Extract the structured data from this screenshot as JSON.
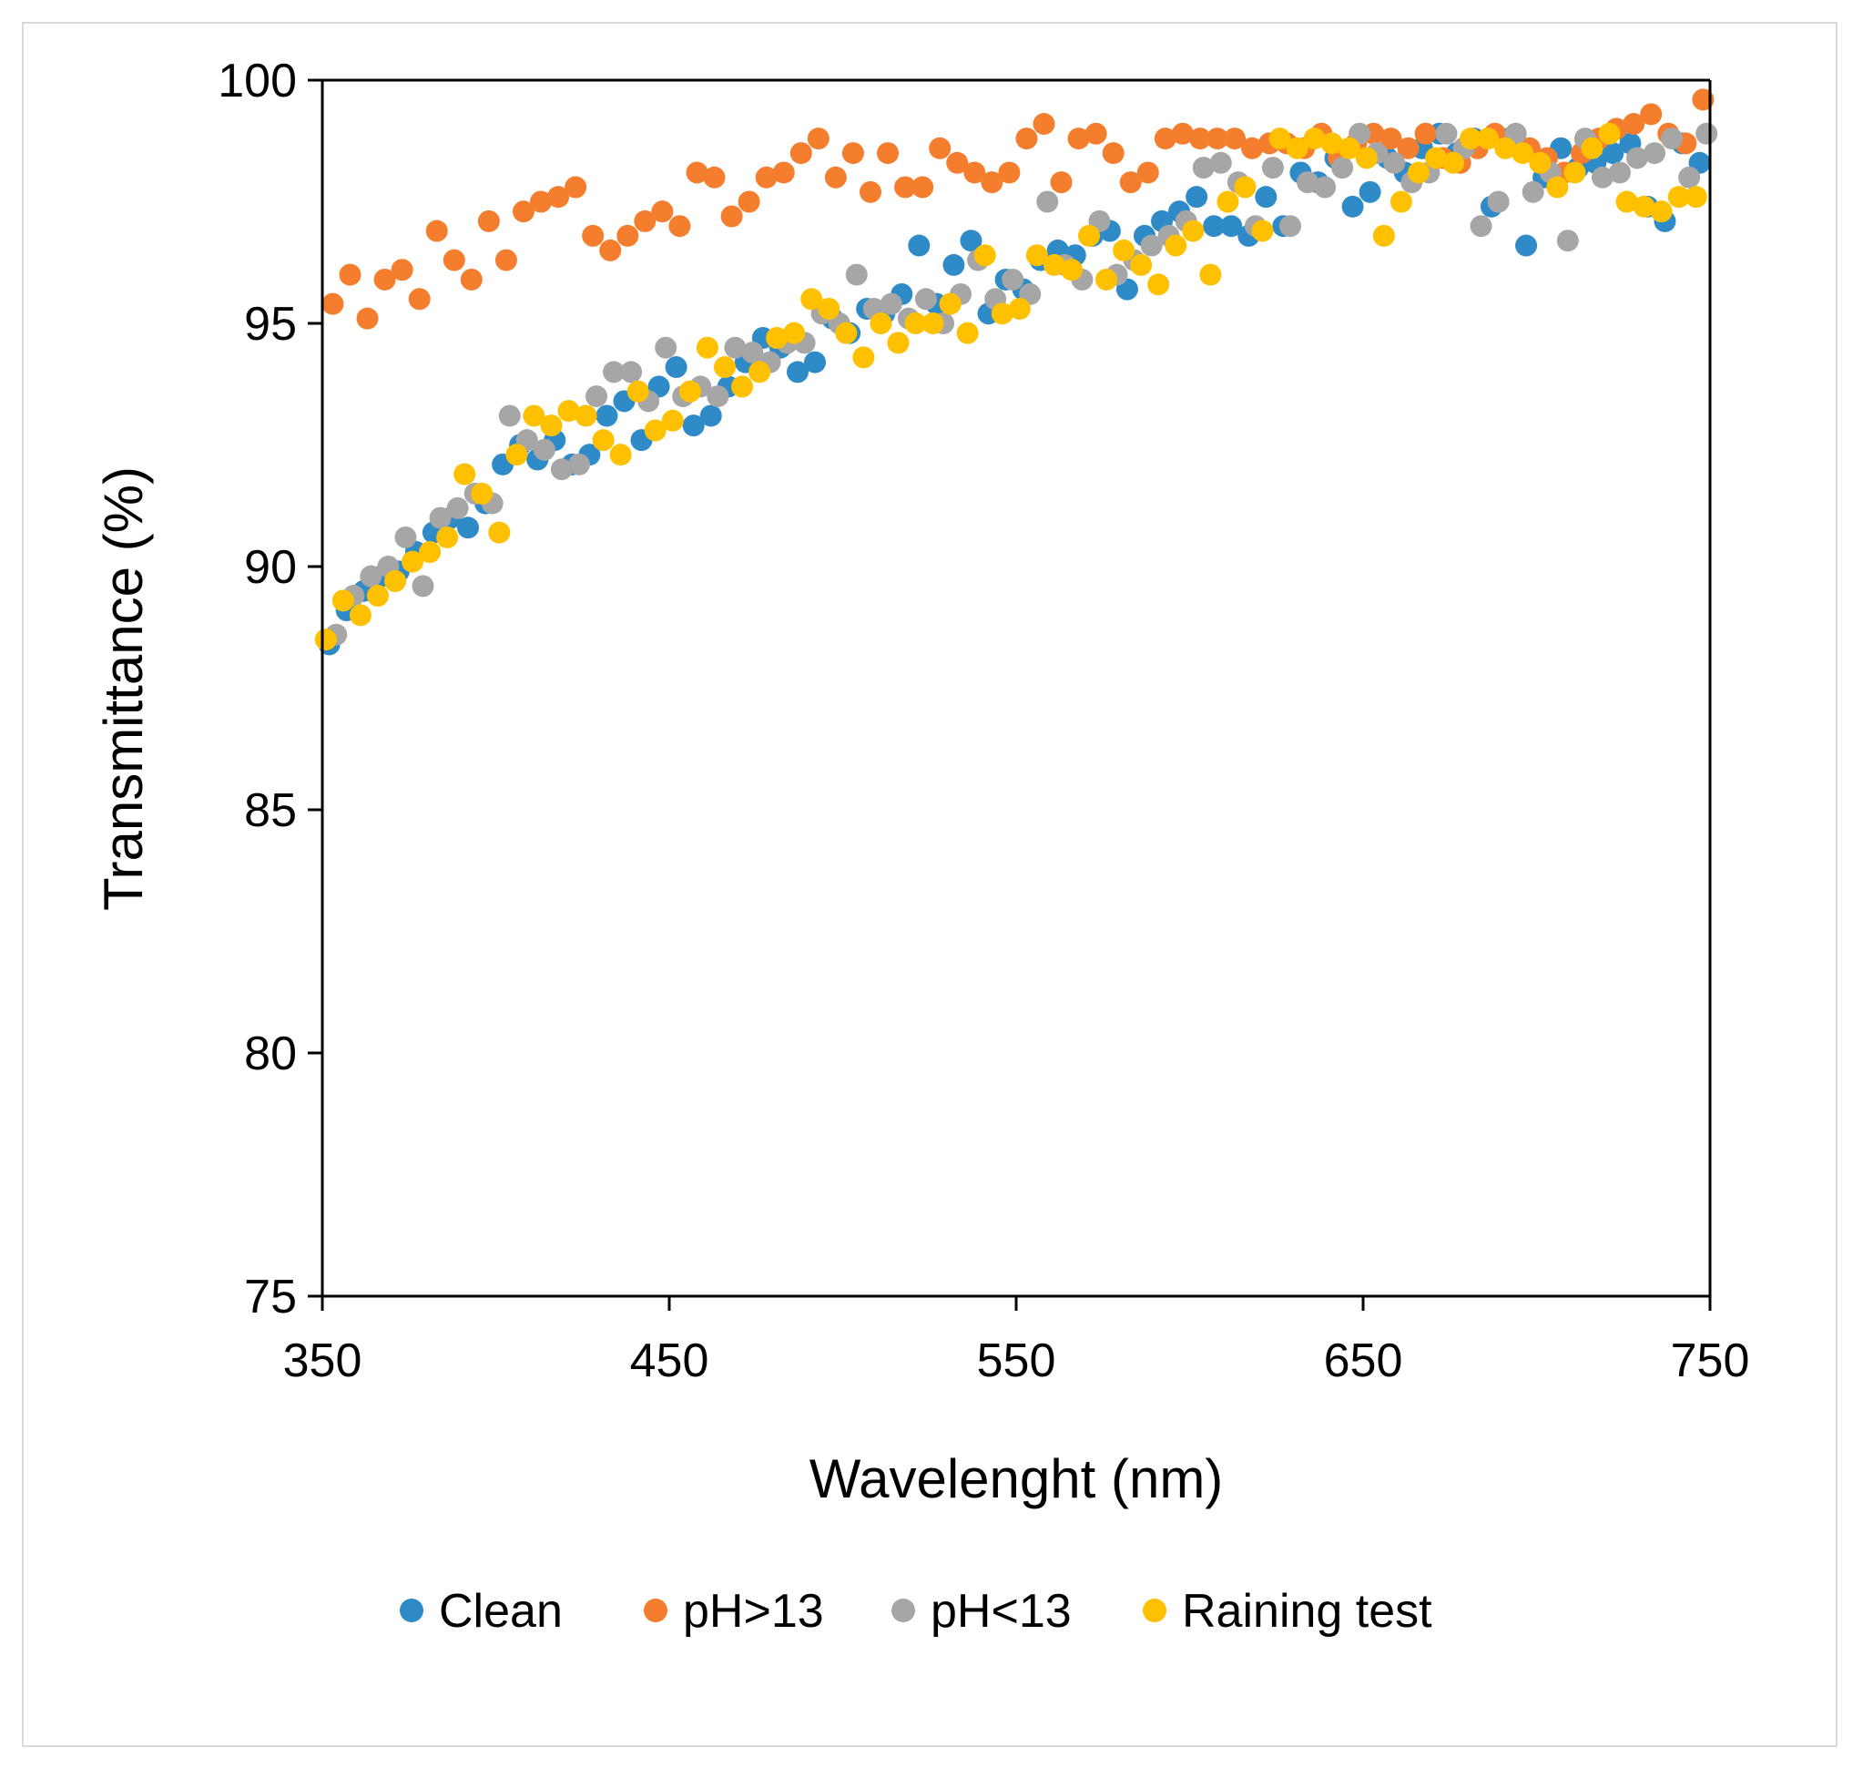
{
  "chart_data": {
    "type": "scatter",
    "title": "",
    "xlabel": "Wavelenght (nm)",
    "ylabel": "Transmittance (%)",
    "xlim": [
      350,
      750
    ],
    "ylim": [
      75,
      100
    ],
    "xticks": [
      350,
      450,
      550,
      650,
      750
    ],
    "yticks": [
      75,
      80,
      85,
      90,
      95,
      100
    ],
    "legend_position": "bottom",
    "series": [
      {
        "name": "Clean",
        "color": "#2E8BC8",
        "x": [
          352,
          357,
          362,
          367,
          372,
          377,
          382,
          387,
          392,
          397,
          402,
          407,
          412,
          417,
          422,
          427,
          432,
          437,
          442,
          447,
          452,
          457,
          462,
          467,
          472,
          477,
          482,
          487,
          492,
          497,
          502,
          507,
          512,
          517,
          522,
          527,
          532,
          537,
          542,
          547,
          552,
          557,
          562,
          567,
          572,
          577,
          582,
          587,
          592,
          597,
          602,
          607,
          612,
          617,
          622,
          627,
          632,
          637,
          642,
          647,
          652,
          657,
          662,
          667,
          672,
          677,
          682,
          687,
          692,
          697,
          702,
          707,
          712,
          717,
          722,
          727,
          732,
          737,
          742,
          747
        ],
        "y": [
          88.4,
          89.1,
          89.5,
          89.8,
          89.9,
          90.3,
          90.7,
          91.0,
          90.8,
          91.3,
          92.1,
          92.5,
          92.2,
          92.6,
          92.1,
          92.3,
          93.1,
          93.4,
          92.6,
          93.7,
          94.1,
          92.9,
          93.1,
          93.7,
          94.2,
          94.7,
          94.5,
          94.0,
          94.2,
          95.1,
          94.8,
          95.3,
          95.2,
          95.6,
          96.6,
          95.4,
          96.2,
          96.7,
          95.2,
          95.9,
          95.7,
          96.3,
          96.5,
          96.4,
          96.8,
          96.9,
          95.7,
          96.8,
          97.1,
          97.3,
          97.6,
          97.0,
          97.0,
          96.8,
          97.6,
          97.0,
          98.1,
          97.9,
          98.4,
          97.4,
          97.7,
          98.4,
          98.1,
          98.6,
          98.9,
          98.5,
          98.8,
          97.4,
          98.8,
          96.6,
          98.0,
          98.6,
          98.2,
          98.3,
          98.5,
          98.7,
          97.4,
          97.1,
          98.7,
          98.3
        ]
      },
      {
        "name": "pH>13",
        "color": "#F47D2E",
        "x": [
          353,
          358,
          363,
          368,
          373,
          378,
          383,
          388,
          393,
          398,
          403,
          408,
          413,
          418,
          423,
          428,
          433,
          438,
          443,
          448,
          453,
          458,
          463,
          468,
          473,
          478,
          483,
          488,
          493,
          498,
          503,
          508,
          513,
          518,
          523,
          528,
          533,
          538,
          543,
          548,
          553,
          558,
          563,
          568,
          573,
          578,
          583,
          588,
          593,
          598,
          603,
          608,
          613,
          618,
          623,
          628,
          633,
          638,
          643,
          648,
          653,
          658,
          663,
          668,
          673,
          678,
          683,
          688,
          693,
          698,
          703,
          708,
          713,
          718,
          723,
          728,
          733,
          738,
          743,
          748
        ],
        "y": [
          95.4,
          96.0,
          95.1,
          95.9,
          96.1,
          95.5,
          96.9,
          96.3,
          95.9,
          97.1,
          96.3,
          97.3,
          97.5,
          97.6,
          97.8,
          96.8,
          96.5,
          96.8,
          97.1,
          97.3,
          97.0,
          98.1,
          98.0,
          97.2,
          97.5,
          98.0,
          98.1,
          98.5,
          98.8,
          98.0,
          98.5,
          97.7,
          98.5,
          97.8,
          97.8,
          98.6,
          98.3,
          98.1,
          97.9,
          98.1,
          98.8,
          99.1,
          97.9,
          98.8,
          98.9,
          98.5,
          97.9,
          98.1,
          98.8,
          98.9,
          98.8,
          98.8,
          98.8,
          98.6,
          98.7,
          98.7,
          98.6,
          98.9,
          98.4,
          98.7,
          98.9,
          98.8,
          98.6,
          98.9,
          98.4,
          98.3,
          98.6,
          98.9,
          98.7,
          98.6,
          98.4,
          98.1,
          98.5,
          98.8,
          99.0,
          99.1,
          99.3,
          98.9,
          98.7,
          99.6
        ]
      },
      {
        "name": "pH<13",
        "color": "#A6A6A6",
        "x": [
          354,
          359,
          364,
          369,
          374,
          379,
          384,
          389,
          394,
          399,
          404,
          409,
          414,
          419,
          424,
          429,
          434,
          439,
          444,
          449,
          454,
          459,
          464,
          469,
          474,
          479,
          484,
          489,
          494,
          499,
          504,
          509,
          514,
          519,
          524,
          529,
          534,
          539,
          544,
          549,
          554,
          559,
          564,
          569,
          574,
          579,
          584,
          589,
          594,
          599,
          604,
          609,
          614,
          619,
          624,
          629,
          634,
          639,
          644,
          649,
          654,
          659,
          664,
          669,
          674,
          679,
          684,
          689,
          694,
          699,
          704,
          709,
          714,
          719,
          724,
          729,
          734,
          739,
          744,
          749
        ],
        "y": [
          88.6,
          89.4,
          89.8,
          90.0,
          90.6,
          89.6,
          91.0,
          91.2,
          91.5,
          91.3,
          93.1,
          92.6,
          92.4,
          92.0,
          92.1,
          93.5,
          94.0,
          94.0,
          93.4,
          94.5,
          93.5,
          93.7,
          93.5,
          94.5,
          94.4,
          94.2,
          94.6,
          94.6,
          95.2,
          95.0,
          96.0,
          95.3,
          95.4,
          95.1,
          95.5,
          95.0,
          95.6,
          96.3,
          95.5,
          95.9,
          95.6,
          97.5,
          96.2,
          95.9,
          97.1,
          96.0,
          96.3,
          96.6,
          96.8,
          97.1,
          98.2,
          98.3,
          97.9,
          97.0,
          98.2,
          97.0,
          97.9,
          97.8,
          98.2,
          98.9,
          98.5,
          98.3,
          97.9,
          98.1,
          98.9,
          98.6,
          97.0,
          97.5,
          98.9,
          97.7,
          98.1,
          96.7,
          98.8,
          98.0,
          98.1,
          98.4,
          98.5,
          98.8,
          98.0,
          98.9
        ]
      },
      {
        "name": "Raining test",
        "color": "#FFC000",
        "x": [
          351,
          356,
          361,
          366,
          371,
          376,
          381,
          386,
          391,
          396,
          401,
          406,
          411,
          416,
          421,
          426,
          431,
          436,
          441,
          446,
          451,
          456,
          461,
          466,
          471,
          476,
          481,
          486,
          491,
          496,
          501,
          506,
          511,
          516,
          521,
          526,
          531,
          536,
          541,
          546,
          551,
          556,
          561,
          566,
          571,
          576,
          581,
          586,
          591,
          596,
          601,
          606,
          611,
          616,
          621,
          626,
          631,
          636,
          641,
          646,
          651,
          656,
          661,
          666,
          671,
          676,
          681,
          686,
          691,
          696,
          701,
          706,
          711,
          716,
          721,
          726,
          731,
          736,
          741,
          746
        ],
        "y": [
          88.5,
          89.3,
          89.0,
          89.4,
          89.7,
          90.1,
          90.3,
          90.6,
          91.9,
          91.5,
          90.7,
          92.3,
          93.1,
          92.9,
          93.2,
          93.1,
          92.6,
          92.3,
          93.6,
          92.8,
          93.0,
          93.6,
          94.5,
          94.1,
          93.7,
          94.0,
          94.7,
          94.8,
          95.5,
          95.3,
          94.8,
          94.3,
          95.0,
          94.6,
          95.0,
          95.0,
          95.4,
          94.8,
          96.4,
          95.2,
          95.3,
          96.4,
          96.2,
          96.1,
          96.8,
          95.9,
          96.5,
          96.2,
          95.8,
          96.6,
          96.9,
          96.0,
          97.5,
          97.8,
          96.9,
          98.8,
          98.6,
          98.8,
          98.7,
          98.6,
          98.4,
          96.8,
          97.5,
          98.1,
          98.4,
          98.3,
          98.8,
          98.8,
          98.6,
          98.5,
          98.3,
          97.8,
          98.1,
          98.6,
          98.9,
          97.5,
          97.4,
          97.3,
          97.6,
          97.6
        ]
      }
    ]
  }
}
